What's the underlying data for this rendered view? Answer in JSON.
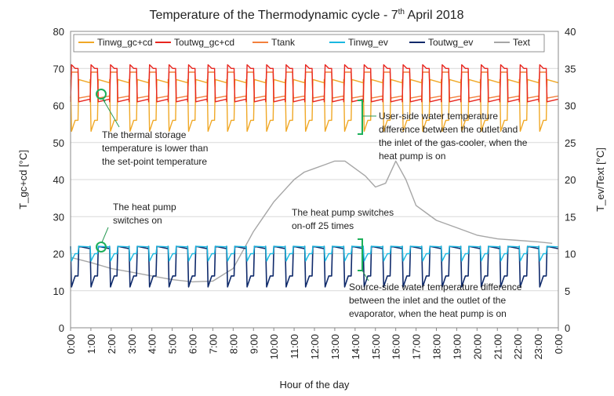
{
  "chart_data": {
    "type": "line",
    "title": "Temperature of the Thermodynamic cycle - 7",
    "title_sup": "th",
    "title_tail": " April 2018",
    "xlabel": "Hour of the day",
    "ylabel_left": "T_gc+cd [°C]",
    "ylabel_right": "T_ev/Text [°C]",
    "xlim": [
      0,
      24
    ],
    "ylim_left": [
      0,
      80
    ],
    "ylim_right": [
      0,
      40
    ],
    "yticks_left": [
      "0",
      "10",
      "20",
      "30",
      "40",
      "50",
      "60",
      "70",
      "80"
    ],
    "yticks_right": [
      "0",
      "5",
      "10",
      "15",
      "20",
      "25",
      "30",
      "35",
      "40"
    ],
    "xticks": [
      "0:00",
      "1:00",
      "2:00",
      "3:00",
      "4:00",
      "5:00",
      "6:00",
      "7:00",
      "8:00",
      "9:00",
      "10:00",
      "11:00",
      "12:00",
      "13:00",
      "14:00",
      "15:00",
      "16:00",
      "17:00",
      "18:00",
      "19:00",
      "20:00",
      "21:00",
      "22:00",
      "23:00",
      "0:00"
    ],
    "grid": "horizontal",
    "legend_position": "top",
    "cycles": 25,
    "series": [
      {
        "name": "Tinwg_gc+cd",
        "axis": "left",
        "color": "#f0a826",
        "on_value": 56,
        "off_value": 67,
        "min": 53,
        "max": 68
      },
      {
        "name": "Toutwg_gc+cd",
        "axis": "left",
        "color": "#e8261f",
        "on_value": 70,
        "off_value": 61,
        "min": 58,
        "max": 71
      },
      {
        "name": "Ttank",
        "axis": "left",
        "color": "#f3803c",
        "on_value": 69,
        "off_value": 62,
        "min": 62,
        "max": 69
      },
      {
        "name": "Tinwg_ev",
        "axis": "right",
        "color": "#1ab8e0",
        "on_value": 10,
        "off_value": 11,
        "min": 9,
        "max": 11.5
      },
      {
        "name": "Toutwg_ev",
        "axis": "right",
        "color": "#0f2a6b",
        "on_value": 7,
        "off_value": 11,
        "min": 5.5,
        "max": 12
      },
      {
        "name": "Text",
        "axis": "right",
        "color": "#a6a6a6",
        "x": [
          0,
          1,
          2,
          3,
          4,
          5,
          6,
          7,
          8,
          8.5,
          9,
          9.5,
          10,
          10.5,
          11,
          11.5,
          12,
          12.5,
          13,
          13.5,
          14,
          14.5,
          15,
          15.5,
          16,
          16.5,
          17,
          17.5,
          18,
          19,
          20,
          21,
          22,
          23,
          23.7
        ],
        "y": [
          9.5,
          8.8,
          8,
          7.5,
          7,
          6.5,
          6.2,
          6.3,
          8,
          10.5,
          13,
          15,
          17,
          18.5,
          20,
          21,
          21.5,
          22,
          22.5,
          22.5,
          21.5,
          20.5,
          19,
          19.5,
          22.5,
          20,
          16.5,
          15.5,
          14.5,
          13.5,
          12.5,
          12,
          11.8,
          11.6,
          11.4
        ]
      }
    ],
    "annotations": [
      {
        "lines": [
          "The thermal storage",
          "temperature is lower than",
          "the set-point temperature"
        ]
      },
      {
        "lines": [
          "User-side water temperature",
          "difference between the outlet and",
          "the inlet of the gas-cooler, when the",
          "heat pump is on"
        ]
      },
      {
        "lines": [
          "The heat pump",
          "switches on"
        ]
      },
      {
        "lines": [
          "The heat pump switches",
          "on-off 25 times"
        ]
      },
      {
        "lines": [
          "Source-side water temperature difference",
          "between the inlet and the outlet of the",
          "evaporator, when the heat pump is on"
        ]
      }
    ]
  }
}
